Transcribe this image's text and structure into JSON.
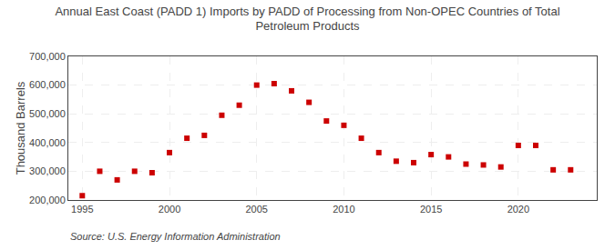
{
  "chart_data": {
    "type": "scatter",
    "title": "Annual East Coast (PADD 1) Imports by PADD of Processing from Non-OPEC Countries of Total\nPetroleum Products",
    "ylabel": "Thousand Barrels",
    "annotations": [
      "Source: U.S. Energy Information Administration"
    ],
    "x": [
      1995,
      1996,
      1997,
      1998,
      1999,
      2000,
      2001,
      2002,
      2003,
      2004,
      2005,
      2006,
      2007,
      2008,
      2009,
      2010,
      2011,
      2012,
      2013,
      2014,
      2015,
      2016,
      2017,
      2018,
      2019,
      2020,
      2021,
      2022,
      2023
    ],
    "values": [
      215000,
      300000,
      270000,
      300000,
      295000,
      365000,
      415000,
      425000,
      495000,
      530000,
      600000,
      605000,
      580000,
      540000,
      475000,
      460000,
      415000,
      365000,
      335000,
      330000,
      358000,
      350000,
      325000,
      322000,
      315000,
      390000,
      390000,
      305000,
      305000
    ],
    "color": "#cc0000",
    "marker": "square",
    "xlim": [
      1994.2,
      2024.5
    ],
    "xticks": [
      1995,
      2000,
      2005,
      2010,
      2015,
      2020
    ],
    "ylim": [
      200000,
      700000
    ],
    "yticks": [
      {
        "value": 200000,
        "label": "200,000"
      },
      {
        "value": 300000,
        "label": "300,000"
      },
      {
        "value": 400000,
        "label": "400,000"
      },
      {
        "value": 500000,
        "label": "500,000"
      },
      {
        "value": 600000,
        "label": "600,000"
      },
      {
        "value": 700000,
        "label": "700,000"
      }
    ],
    "grid": true
  }
}
